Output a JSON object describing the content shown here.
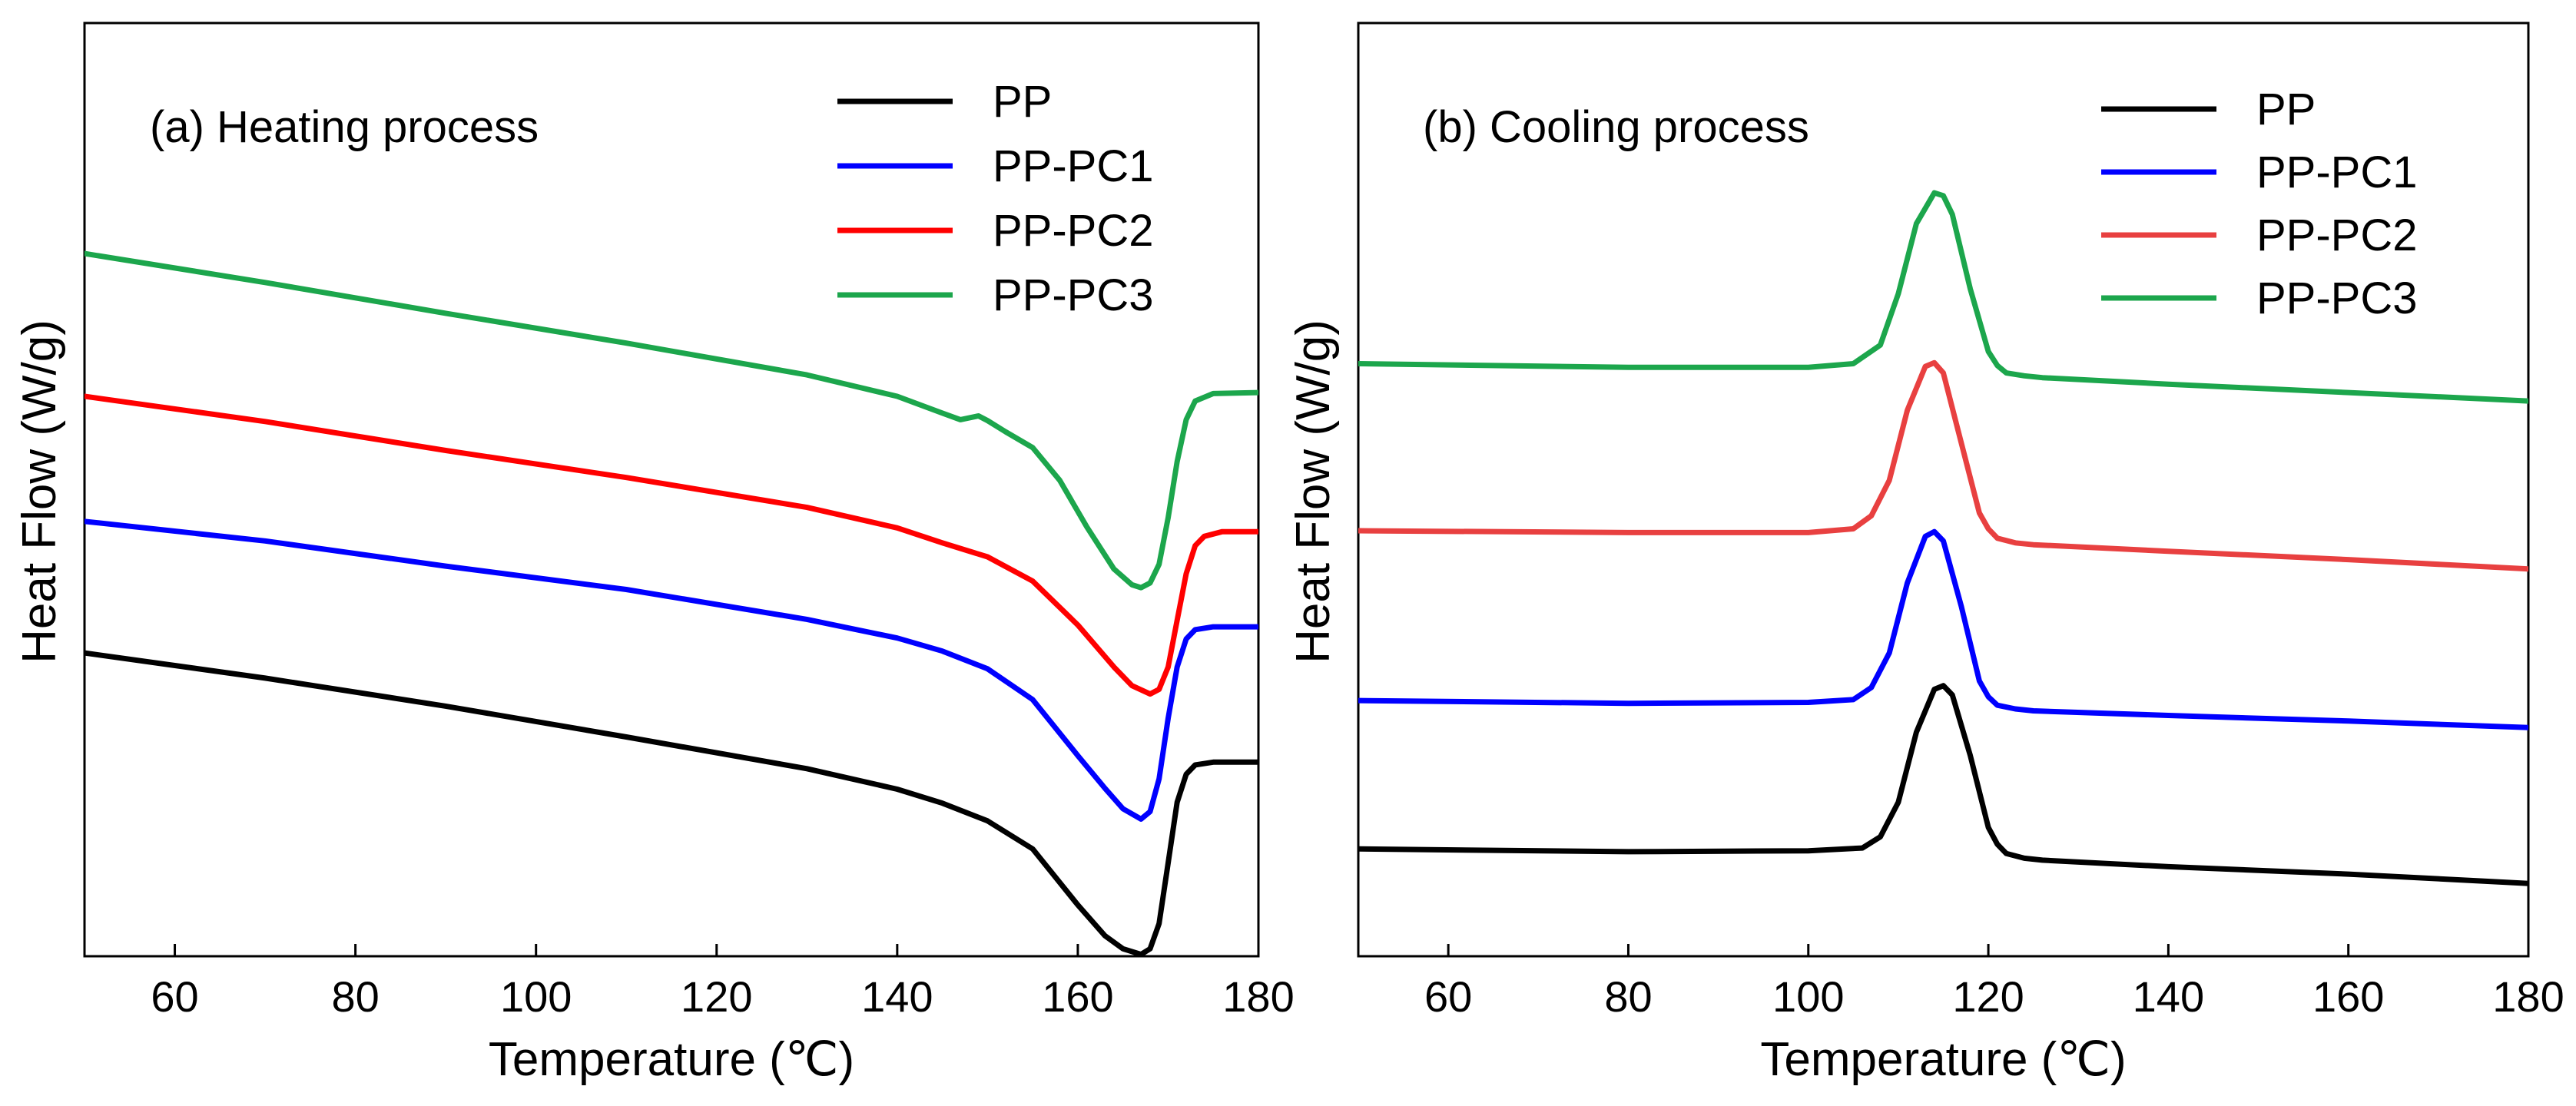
{
  "chart_data": [
    {
      "type": "line",
      "title": "(a) Heating process",
      "xlabel": "Temperature (℃)",
      "ylabel": "Heat Flow (W/g)",
      "xlim": [
        50,
        180
      ],
      "ylim": [
        0,
        100
      ],
      "xticks": [
        60,
        80,
        100,
        120,
        140,
        160,
        180
      ],
      "yticks_shown": false,
      "legend_position": "top-right",
      "series": [
        {
          "name": "PP",
          "color": "#000000",
          "x": [
            50,
            70,
            90,
            110,
            130,
            140,
            145,
            150,
            155,
            160,
            163,
            165,
            167,
            168,
            169,
            170,
            171,
            172,
            173,
            175,
            180
          ],
          "y": [
            32.5,
            29.8,
            26.8,
            23.5,
            20.1,
            17.9,
            16.4,
            14.5,
            11.5,
            5.5,
            2.2,
            0.8,
            0.2,
            0.8,
            3.5,
            10.0,
            16.5,
            19.5,
            20.5,
            20.8,
            20.8
          ]
        },
        {
          "name": "PP-PC1",
          "color": "#0000ff",
          "x": [
            50,
            70,
            90,
            110,
            130,
            140,
            145,
            150,
            155,
            160,
            163,
            165,
            167,
            168,
            169,
            170,
            171,
            172,
            173,
            175,
            180
          ],
          "y": [
            46.6,
            44.5,
            41.8,
            39.3,
            36.1,
            34.1,
            32.7,
            30.8,
            27.5,
            21.5,
            18.0,
            15.8,
            14.7,
            15.5,
            19.0,
            25.5,
            31.0,
            34.0,
            35.0,
            35.3,
            35.3
          ]
        },
        {
          "name": "PP-PC2",
          "color": "#ff0000",
          "x": [
            50,
            70,
            90,
            110,
            130,
            140,
            145,
            150,
            155,
            160,
            164,
            166,
            168,
            169,
            170,
            171,
            172,
            173,
            174,
            176,
            180
          ],
          "y": [
            60.0,
            57.3,
            54.2,
            51.3,
            48.1,
            45.9,
            44.3,
            42.8,
            40.2,
            35.5,
            31.0,
            29.0,
            28.1,
            28.6,
            31.0,
            36.0,
            41.0,
            44.0,
            45.0,
            45.5,
            45.5
          ]
        },
        {
          "name": "PP-PC3",
          "color": "#1ca64c",
          "x": [
            50,
            70,
            90,
            110,
            130,
            140,
            145,
            147,
            149,
            150,
            152,
            155,
            158,
            161,
            164,
            166,
            167,
            168,
            169,
            170,
            171,
            172,
            173,
            175,
            180
          ],
          "y": [
            75.3,
            72.2,
            68.9,
            65.7,
            62.3,
            60.0,
            58.2,
            57.5,
            57.9,
            57.4,
            56.2,
            54.5,
            51.0,
            46.0,
            41.5,
            39.8,
            39.5,
            40.0,
            42.0,
            47.0,
            53.0,
            57.5,
            59.5,
            60.3,
            60.4
          ]
        }
      ]
    },
    {
      "type": "line",
      "title": "(b) Cooling process",
      "xlabel": "Temperature (℃)",
      "ylabel": "Heat Flow (W/g)",
      "xlim": [
        50,
        180
      ],
      "ylim": [
        0,
        100
      ],
      "xticks": [
        60,
        80,
        100,
        120,
        140,
        160,
        180
      ],
      "yticks_shown": false,
      "legend_position": "top-right",
      "series": [
        {
          "name": "PP",
          "color": "#000000",
          "x": [
            50,
            80,
            100,
            106,
            108,
            110,
            112,
            114,
            115,
            116,
            118,
            120,
            121,
            122,
            124,
            126,
            140,
            160,
            180
          ],
          "y": [
            11.5,
            11.2,
            11.3,
            11.6,
            12.8,
            16.5,
            24.0,
            28.6,
            29.0,
            28.0,
            21.5,
            13.8,
            12.0,
            11.0,
            10.5,
            10.3,
            9.6,
            8.8,
            7.8
          ]
        },
        {
          "name": "PP-PC1",
          "color": "#0000ff",
          "x": [
            50,
            80,
            100,
            105,
            107,
            109,
            111,
            113,
            114,
            115,
            117,
            119,
            120,
            121,
            123,
            125,
            140,
            160,
            180
          ],
          "y": [
            27.4,
            27.1,
            27.2,
            27.5,
            28.8,
            32.5,
            40.0,
            45.0,
            45.5,
            44.5,
            37.5,
            29.5,
            27.8,
            26.9,
            26.5,
            26.3,
            25.8,
            25.2,
            24.5
          ]
        },
        {
          "name": "PP-PC2",
          "color": "#e84040",
          "x": [
            50,
            80,
            100,
            105,
            107,
            109,
            111,
            113,
            114,
            115,
            117,
            119,
            120,
            121,
            123,
            125,
            140,
            160,
            180
          ],
          "y": [
            45.6,
            45.4,
            45.4,
            45.8,
            47.2,
            51.0,
            58.5,
            63.2,
            63.6,
            62.5,
            55.0,
            47.5,
            45.8,
            44.8,
            44.3,
            44.1,
            43.4,
            42.5,
            41.5
          ]
        },
        {
          "name": "PP-PC3",
          "color": "#1ca64c",
          "x": [
            50,
            80,
            100,
            105,
            108,
            110,
            112,
            114,
            115,
            116,
            118,
            120,
            121,
            122,
            124,
            126,
            140,
            160,
            180
          ],
          "y": [
            63.5,
            63.1,
            63.1,
            63.5,
            65.5,
            71.0,
            78.5,
            81.8,
            81.5,
            79.5,
            71.5,
            64.8,
            63.3,
            62.5,
            62.2,
            62.0,
            61.3,
            60.4,
            59.5
          ]
        }
      ]
    }
  ]
}
